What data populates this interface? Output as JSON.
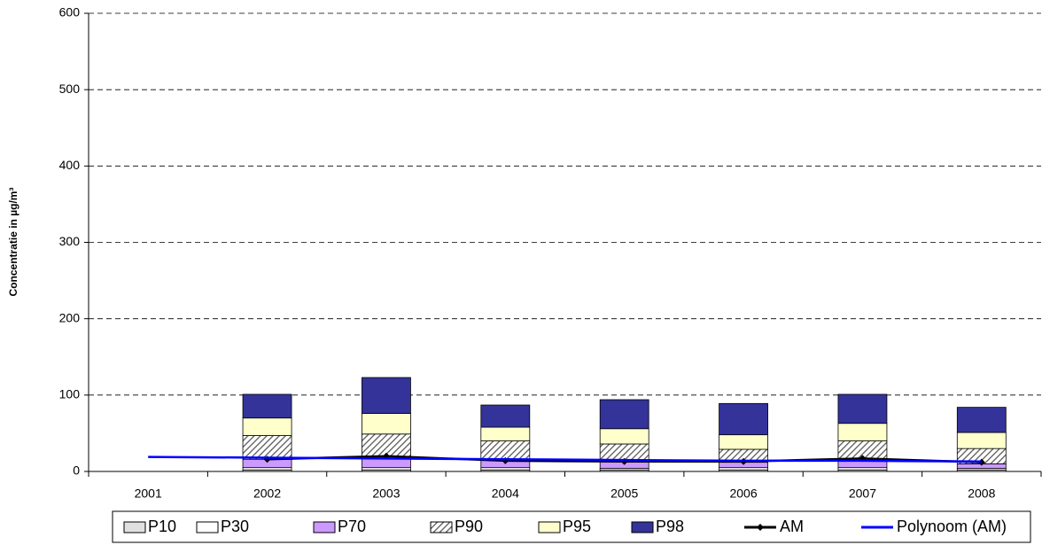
{
  "chart_data": {
    "type": "bar",
    "stacked": true,
    "y_label": "Concentratie in µg/m³",
    "categories": [
      "2001",
      "2002",
      "2003",
      "2004",
      "2005",
      "2006",
      "2007",
      "2008"
    ],
    "series": [
      {
        "name": "P10",
        "color": "#e0e0e0",
        "values": [
          null,
          2,
          2,
          2,
          2,
          2,
          2,
          2
        ]
      },
      {
        "name": "P30",
        "color": "#ffffff",
        "values": [
          null,
          3,
          3,
          3,
          2,
          3,
          3,
          2
        ]
      },
      {
        "name": "P70",
        "color": "#cc99ff",
        "values": [
          null,
          11,
          12,
          11,
          10,
          7,
          12,
          6
        ]
      },
      {
        "name": "P90",
        "color": "#c0c0c0",
        "hatch": true,
        "values": [
          null,
          31,
          32,
          24,
          22,
          17,
          23,
          20
        ]
      },
      {
        "name": "P95",
        "color": "#ffffcc",
        "values": [
          null,
          23,
          27,
          18,
          20,
          19,
          23,
          21
        ]
      },
      {
        "name": "P98",
        "color": "#333399",
        "values": [
          null,
          31,
          47,
          29,
          38,
          41,
          38,
          33
        ]
      },
      {
        "name": "AM",
        "type": "line",
        "color": "#000000",
        "marker": true,
        "values": [
          null,
          16,
          20,
          14,
          13,
          13,
          17,
          12
        ]
      },
      {
        "name": "Polynoom (AM)",
        "type": "line",
        "color": "#0000ff",
        "values": [
          19,
          18,
          17,
          16,
          15,
          14,
          14,
          13
        ]
      }
    ],
    "ylim": [
      0,
      600
    ],
    "yticks": [
      0,
      100,
      200,
      300,
      400,
      500,
      600
    ],
    "grid": true,
    "legend": "bottom"
  }
}
